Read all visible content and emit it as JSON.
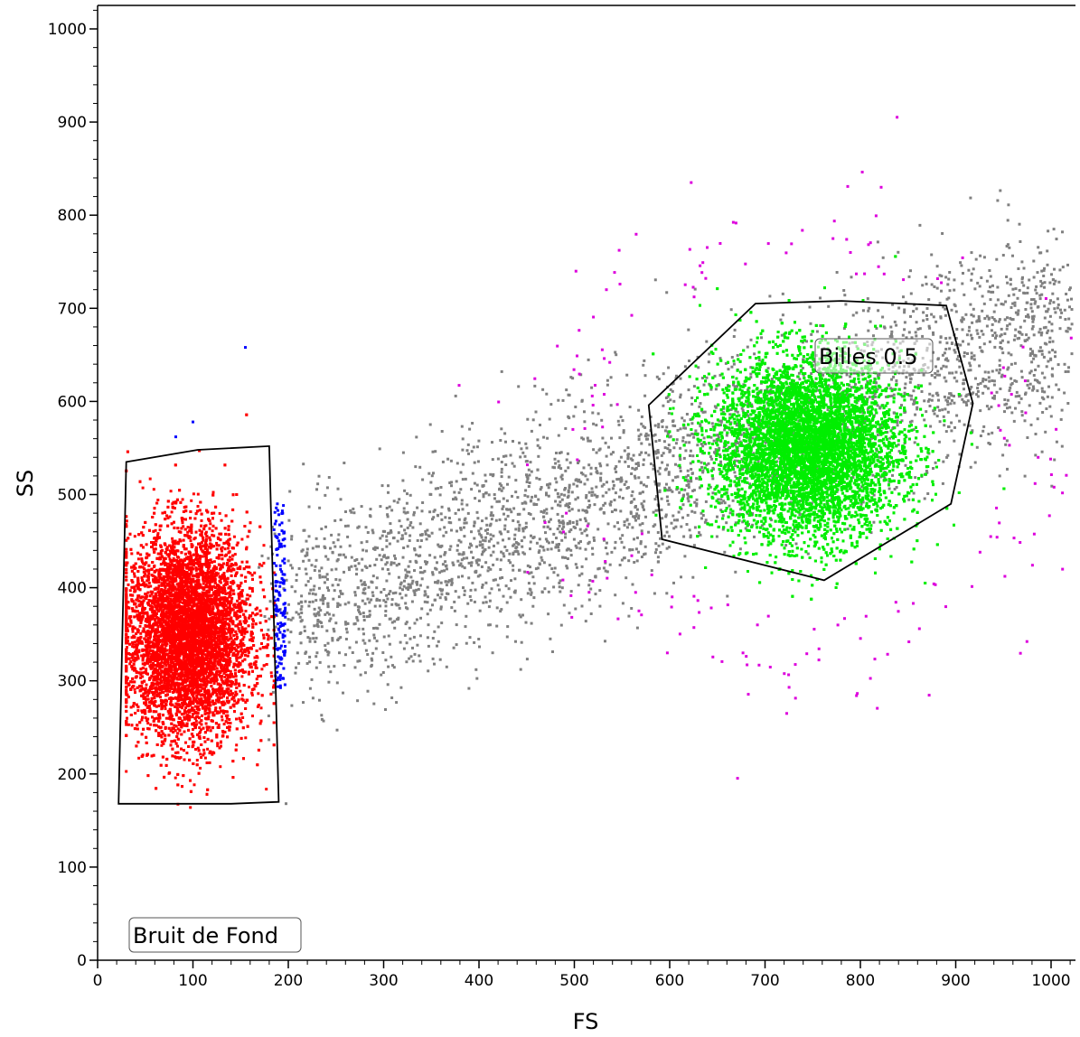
{
  "chart_data": {
    "type": "scatter",
    "title": "",
    "xlabel": "FS",
    "ylabel": "SS",
    "xlim": [
      0,
      1023
    ],
    "ylim": [
      0,
      1023
    ],
    "xticks": [
      0,
      100,
      200,
      300,
      400,
      500,
      600,
      700,
      800,
      900,
      1000
    ],
    "yticks": [
      0,
      100,
      200,
      300,
      400,
      500,
      600,
      700,
      800,
      900,
      1000
    ],
    "grid": false,
    "populations": [
      {
        "gate_label": "Bruit de Fond",
        "color": "#ff0000",
        "center": [
          95,
          350
        ],
        "spread": [
          32,
          55
        ],
        "approx_events": 9000
      },
      {
        "gate_label": "Billes 0.5",
        "color": "#00ee00",
        "center": [
          745,
          550
        ],
        "spread": [
          48,
          48
        ],
        "approx_events": 12000
      },
      {
        "gate_label": "",
        "color": "#808080",
        "description": "events outside gates along diagonal trend",
        "trend_start": [
          200,
          370
        ],
        "trend_end": [
          1023,
          690
        ],
        "approx_events": 3500
      },
      {
        "gate_label": "",
        "color": "#0000ff",
        "description": "events just right of Bruit de Fond gate",
        "approx_events": 150
      },
      {
        "gate_label": "",
        "color": "#dd00dd",
        "description": "events just outside Billes 0.5 gate",
        "approx_events": 180
      }
    ],
    "gates": [
      {
        "name": "Bruit de Fond",
        "vertices": [
          [
            30,
            535
          ],
          [
            105,
            548
          ],
          [
            180,
            552
          ],
          [
            190,
            170
          ],
          [
            140,
            168
          ],
          [
            22,
            168
          ]
        ]
      },
      {
        "name": "Billes 0.5",
        "vertices": [
          [
            578,
            596
          ],
          [
            690,
            705
          ],
          [
            780,
            708
          ],
          [
            890,
            703
          ],
          [
            918,
            598
          ],
          [
            895,
            490
          ],
          [
            762,
            408
          ],
          [
            592,
            452
          ]
        ]
      }
    ]
  }
}
